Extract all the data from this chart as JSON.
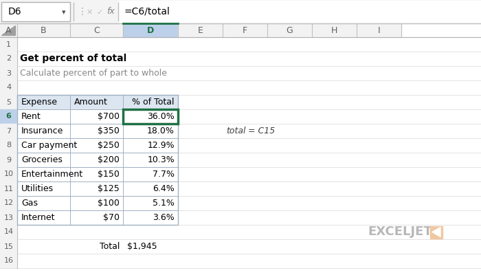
{
  "title": "Get percent of total",
  "subtitle": "Calculate percent of part to whole",
  "formula_cell": "D6",
  "formula_bar": "=C6/total",
  "annotation_italic": "total",
  "annotation_rest": " = C15",
  "columns": [
    "Expense",
    "Amount",
    "% of Total"
  ],
  "rows": [
    [
      "Rent",
      "$700",
      "36.0%"
    ],
    [
      "Insurance",
      "$350",
      "18.0%"
    ],
    [
      "Car payment",
      "$250",
      "12.9%"
    ],
    [
      "Groceries",
      "$200",
      "10.3%"
    ],
    [
      "Entertainment",
      "$150",
      "7.7%"
    ],
    [
      "Utilities",
      "$125",
      "6.4%"
    ],
    [
      "Gas",
      "$100",
      "5.1%"
    ],
    [
      "Internet",
      "$70",
      "3.6%"
    ]
  ],
  "total_label": "Total",
  "total_amount": "$1,945",
  "col_letters": [
    "A",
    "B",
    "C",
    "D",
    "E",
    "F",
    "G",
    "H",
    "I"
  ],
  "num_rows": 16,
  "header_bg": "#dce6f1",
  "selected_col_bg": "#bdd0e9",
  "cell_selected_border": "#1e7145",
  "row_header_bg": "#f2f2f2",
  "col_header_bg": "#f2f2f2",
  "grid_color": "#c8c8c8",
  "table_border_color": "#a0b0c0",
  "subtitle_color": "#888888",
  "bg_color": "#ffffff",
  "formula_bar_bg": "#f4f4f4",
  "exceljet_color": "#b0b0b0",
  "logo_box_color": "#f0c8a0"
}
